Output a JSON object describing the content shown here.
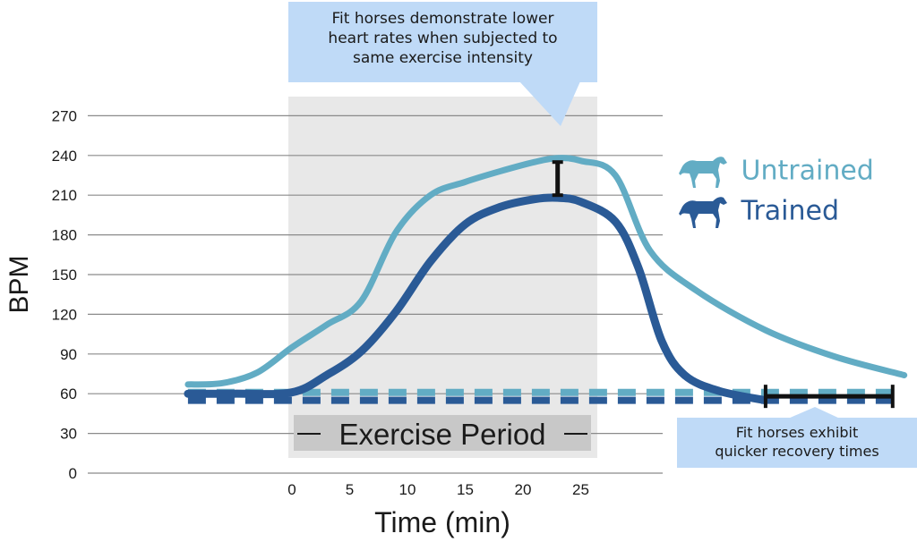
{
  "chart_data": {
    "type": "line",
    "xlabel": "Time (min)",
    "ylabel": "BPM",
    "x_tick_labels": [
      "0",
      "5",
      "10",
      "15",
      "20",
      "25"
    ],
    "y_tick_labels": [
      "0",
      "30",
      "60",
      "90",
      "120",
      "150",
      "180",
      "210",
      "240",
      "270"
    ],
    "ylim": [
      0,
      270
    ],
    "grid": true,
    "legend_position": "right",
    "series": [
      {
        "name": "Untrained",
        "color": "#62acc4",
        "points": [
          [
            -9,
            67
          ],
          [
            -6,
            68
          ],
          [
            -3,
            76
          ],
          [
            0,
            95
          ],
          [
            3,
            112
          ],
          [
            6,
            130
          ],
          [
            9,
            182
          ],
          [
            12,
            210
          ],
          [
            15,
            220
          ],
          [
            18,
            228
          ],
          [
            21,
            235
          ],
          [
            23,
            238
          ],
          [
            25,
            236
          ],
          [
            28,
            225
          ],
          [
            31,
            168
          ],
          [
            35,
            138
          ],
          [
            41,
            108
          ],
          [
            47,
            88
          ],
          [
            53,
            74
          ]
        ]
      },
      {
        "name": "Trained",
        "color": "#2a5a96",
        "points": [
          [
            -9,
            60
          ],
          [
            -5,
            60
          ],
          [
            0,
            61
          ],
          [
            3,
            74
          ],
          [
            6,
            92
          ],
          [
            9,
            122
          ],
          [
            12,
            160
          ],
          [
            15,
            188
          ],
          [
            18,
            201
          ],
          [
            21,
            207
          ],
          [
            23,
            208
          ],
          [
            25,
            205
          ],
          [
            28,
            190
          ],
          [
            30,
            155
          ],
          [
            32,
            100
          ],
          [
            34,
            74
          ],
          [
            37,
            62
          ],
          [
            41,
            55
          ]
        ]
      },
      {
        "name": "Untrained baseline",
        "color": "#62acc4",
        "style": "dashed",
        "points": [
          [
            -9,
            61
          ],
          [
            53,
            61
          ]
        ]
      },
      {
        "name": "Trained baseline",
        "color": "#2a5a96",
        "style": "dashed",
        "points": [
          [
            -9,
            55
          ],
          [
            53,
            55
          ]
        ]
      }
    ],
    "shaded_region_label": "Exercise Period",
    "shaded_region_x": [
      0,
      26
    ],
    "annotations": [
      {
        "id": "lower-heart-rate",
        "lines": [
          "Fit horses demonstrate lower",
          "heart rates when subjected to",
          "same exercise intensity"
        ],
        "bracket_x": 23,
        "bracket_y": [
          210,
          235
        ]
      },
      {
        "id": "recovery",
        "lines": [
          "Fit horses exhibit",
          "quicker recovery times"
        ],
        "bracket_x": [
          41,
          52
        ],
        "bracket_y": 58
      }
    ]
  }
}
